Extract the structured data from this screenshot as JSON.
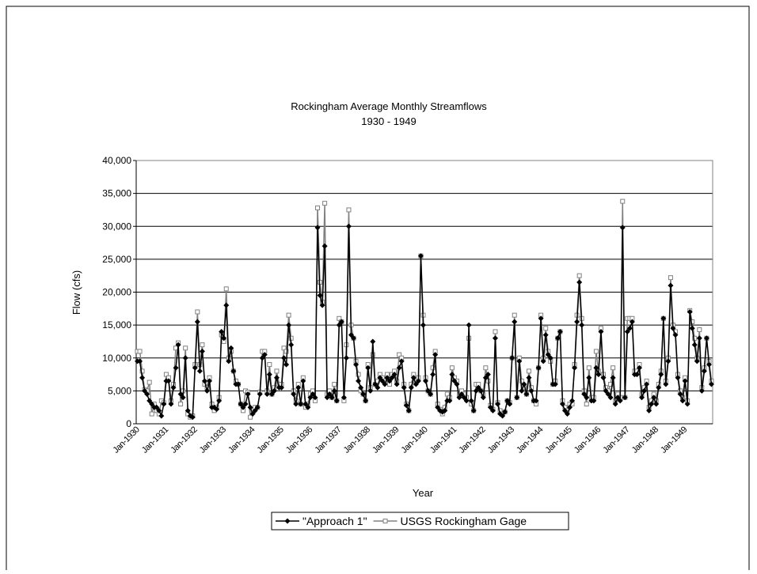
{
  "chart_data": {
    "type": "line",
    "title": "Rockingham Average Monthly Streamflows",
    "subtitle": "1930 - 1949",
    "x_label": "Year",
    "y_label": "Flow (cfs)",
    "ylim": [
      0,
      40000
    ],
    "yticks": [
      0,
      {
        "value": 5000,
        "label": "5,000"
      },
      {
        "value": 10000,
        "label": "10,000"
      },
      {
        "value": 15000,
        "label": "15,000"
      },
      {
        "value": 20000,
        "label": "20,000"
      },
      {
        "value": 25000,
        "label": "25,000"
      },
      {
        "value": 30000,
        "label": "30,000"
      },
      {
        "value": 35000,
        "label": "35,000"
      },
      {
        "value": 40000,
        "label": "40,000"
      }
    ],
    "grid": true,
    "legend": "bottom",
    "categories": [
      "Jan-1930",
      null,
      null,
      null,
      null,
      null,
      null,
      null,
      null,
      null,
      null,
      null,
      "Jan-1931",
      null,
      null,
      null,
      null,
      null,
      null,
      null,
      null,
      null,
      null,
      null,
      "Jan-1932",
      null,
      null,
      null,
      null,
      null,
      null,
      null,
      null,
      null,
      null,
      null,
      "Jan-1933",
      null,
      null,
      null,
      null,
      null,
      null,
      null,
      null,
      null,
      null,
      null,
      "Jan-1934",
      null,
      null,
      null,
      null,
      null,
      null,
      null,
      null,
      null,
      null,
      null,
      "Jan-1935",
      null,
      null,
      null,
      null,
      null,
      null,
      null,
      null,
      null,
      null,
      null,
      "Jan-1936",
      null,
      null,
      null,
      null,
      null,
      null,
      null,
      null,
      null,
      null,
      null,
      "Jan-1937",
      null,
      null,
      null,
      null,
      null,
      null,
      null,
      null,
      null,
      null,
      null,
      "Jan-1938",
      null,
      null,
      null,
      null,
      null,
      null,
      null,
      null,
      null,
      null,
      null,
      "Jan-1939",
      null,
      null,
      null,
      null,
      null,
      null,
      null,
      null,
      null,
      null,
      null,
      "Jan-1940",
      null,
      null,
      null,
      null,
      null,
      null,
      null,
      null,
      null,
      null,
      null,
      "Jan-1941",
      null,
      null,
      null,
      null,
      null,
      null,
      null,
      null,
      null,
      null,
      null,
      "Jan-1942",
      null,
      null,
      null,
      null,
      null,
      null,
      null,
      null,
      null,
      null,
      null,
      "Jan-1943",
      null,
      null,
      null,
      null,
      null,
      null,
      null,
      null,
      null,
      null,
      null,
      "Jan-1944",
      null,
      null,
      null,
      null,
      null,
      null,
      null,
      null,
      null,
      null,
      null,
      "Jan-1945",
      null,
      null,
      null,
      null,
      null,
      null,
      null,
      null,
      null,
      null,
      null,
      "Jan-1946",
      null,
      null,
      null,
      null,
      null,
      null,
      null,
      null,
      null,
      null,
      null,
      "Jan-1947",
      null,
      null,
      null,
      null,
      null,
      null,
      null,
      null,
      null,
      null,
      null,
      "Jan-1948",
      null,
      null,
      null,
      null,
      null,
      null,
      null,
      null,
      null,
      null,
      null,
      "Jan-1949",
      null,
      null,
      null,
      null,
      null,
      null,
      null,
      null,
      null,
      null,
      null
    ],
    "series": [
      {
        "name": "\"Approach 1\"",
        "color": "#000000",
        "marker": "diamond",
        "values": [
          9500,
          9500,
          7000,
          5000,
          4500,
          3500,
          3000,
          2500,
          2500,
          2000,
          1200,
          3000,
          6500,
          6500,
          3000,
          5500,
          8500,
          12000,
          4500,
          4000,
          10000,
          2000,
          1200,
          1000,
          8500,
          15500,
          8000,
          11000,
          6500,
          5000,
          6500,
          2500,
          2500,
          2200,
          3500,
          14000,
          13000,
          18000,
          9500,
          11500,
          8000,
          6000,
          6000,
          3000,
          2500,
          3000,
          4500,
          2500,
          1500,
          2000,
          2500,
          4500,
          10000,
          10500,
          4500,
          7500,
          4500,
          5000,
          7000,
          5500,
          5500,
          10000,
          9000,
          15000,
          12000,
          4500,
          3000,
          5500,
          3000,
          6500,
          3000,
          2500,
          4000,
          4500,
          4000,
          29800,
          19500,
          18000,
          27000,
          4000,
          4500,
          4000,
          5000,
          3500,
          15000,
          15500,
          4000,
          10000,
          30000,
          13500,
          13000,
          9000,
          6500,
          5500,
          4500,
          3500,
          8500,
          5000,
          12500,
          6000,
          5500,
          7000,
          6500,
          6000,
          7000,
          6500,
          7000,
          7500,
          6000,
          8500,
          9500,
          5500,
          2800,
          2000,
          5500,
          7000,
          6000,
          6500,
          25500,
          15000,
          6500,
          5000,
          4500,
          7500,
          10500,
          2500,
          2000,
          1800,
          2000,
          3500,
          3500,
          7500,
          6500,
          6000,
          4000,
          4500,
          4000,
          3500,
          15000,
          3500,
          2000,
          5000,
          5500,
          5000,
          4000,
          7000,
          7500,
          2500,
          2000,
          13000,
          3000,
          1500,
          1200,
          1800,
          3500,
          3000,
          10000,
          15500,
          4000,
          9500,
          5000,
          6000,
          4500,
          7000,
          5000,
          3500,
          3500,
          8500,
          16000,
          9500,
          13500,
          10500,
          10000,
          6000,
          6000,
          13000,
          14000,
          3000,
          2000,
          1500,
          2500,
          3500,
          8500,
          15500,
          21500,
          15000,
          4500,
          4000,
          7000,
          3500,
          3500,
          8500,
          7500,
          14000,
          7000,
          5000,
          4500,
          4000,
          7000,
          3000,
          4000,
          3500,
          29800,
          4000,
          14000,
          14500,
          15500,
          7500,
          7500,
          8500,
          4000,
          5000,
          6000,
          2000,
          3000,
          4000,
          3000,
          5500,
          7500,
          16000,
          6000,
          9500,
          21000,
          14500,
          13500,
          7000,
          4500,
          3500,
          6500,
          3000,
          17000,
          14500,
          12000,
          9500,
          13000,
          5000,
          8000,
          13000,
          9000,
          6000
        ]
      },
      {
        "name": "USGS Rockingham Gage",
        "color": "#808080",
        "marker": "square",
        "values": [
          11000,
          11000,
          8000,
          5200,
          5000,
          6300,
          1500,
          3000,
          2000,
          1500,
          3500,
          3200,
          7500,
          7000,
          3500,
          6000,
          11500,
          12300,
          3000,
          5000,
          11500,
          1500,
          1000,
          1200,
          9000,
          17000,
          9000,
          12000,
          6000,
          5500,
          7000,
          3000,
          2000,
          2500,
          4000,
          13500,
          12500,
          20500,
          10000,
          11000,
          8000,
          6500,
          6000,
          3000,
          2000,
          5000,
          4800,
          1000,
          2000,
          2500,
          2500,
          4800,
          11000,
          11000,
          5000,
          9000,
          4500,
          5500,
          8000,
          6000,
          6000,
          11500,
          11000,
          16500,
          13000,
          5000,
          3500,
          6000,
          3000,
          7000,
          2500,
          3000,
          4500,
          5000,
          3500,
          32800,
          21500,
          18500,
          33500,
          4500,
          5000,
          4000,
          6000,
          3500,
          16000,
          15500,
          3500,
          12000,
          32500,
          15000,
          13000,
          9500,
          7500,
          5000,
          4500,
          3500,
          9000,
          5500,
          10500,
          6000,
          6500,
          7500,
          7000,
          6500,
          7500,
          6000,
          7500,
          8000,
          6500,
          10500,
          10000,
          6000,
          3000,
          2000,
          6000,
          7500,
          6500,
          7000,
          25500,
          16500,
          7000,
          5000,
          4500,
          8500,
          11000,
          3000,
          2200,
          1500,
          2500,
          4500,
          4000,
          8500,
          7000,
          6500,
          4500,
          5000,
          4500,
          4000,
          13000,
          3000,
          2000,
          6000,
          6000,
          5000,
          4500,
          8500,
          6500,
          2800,
          2200,
          14000,
          3200,
          2000,
          1500,
          1800,
          3500,
          3200,
          10000,
          16500,
          4000,
          10000,
          6500,
          5500,
          4500,
          8000,
          5500,
          3500,
          3000,
          8500,
          16500,
          10000,
          14500,
          11000,
          9500,
          6000,
          6500,
          13000,
          14000,
          3500,
          2500,
          2000,
          3000,
          3000,
          9000,
          16500,
          22500,
          16000,
          5000,
          3000,
          8500,
          4000,
          4000,
          11000,
          8000,
          14500,
          7500,
          5500,
          5000,
          6000,
          8500,
          3500,
          4500,
          4000,
          33800,
          4000,
          16000,
          16000,
          16000,
          8000,
          8000,
          9000,
          4500,
          5500,
          6500,
          2500,
          3500,
          4500,
          3500,
          6000,
          8000,
          16000,
          6500,
          10000,
          22200,
          15000,
          14000,
          7500,
          5000,
          4000,
          7000,
          3500,
          17200,
          15500,
          13000,
          10000,
          14300,
          5500,
          8500,
          13000,
          9500,
          6500
        ]
      }
    ]
  }
}
